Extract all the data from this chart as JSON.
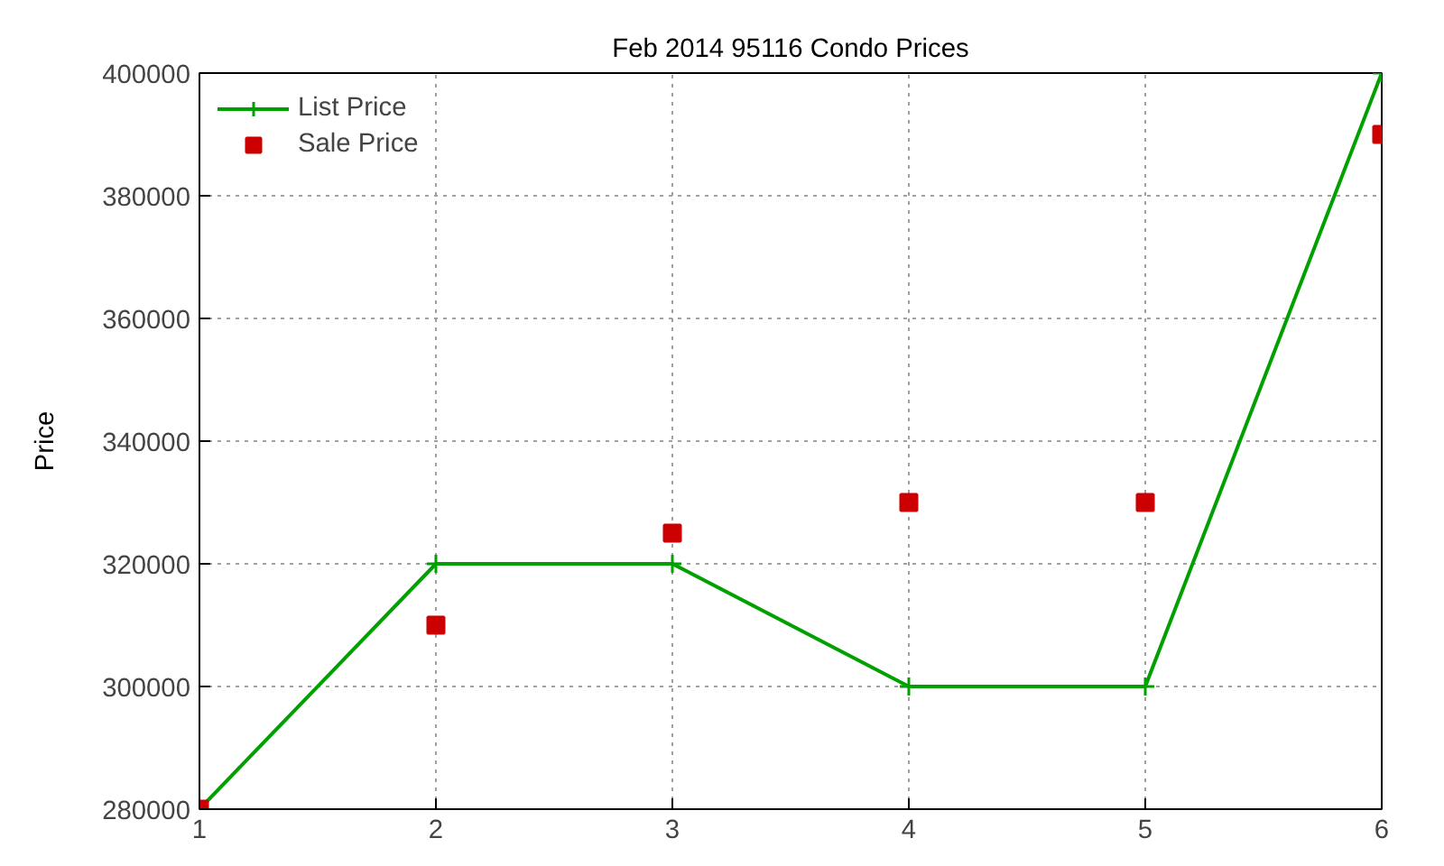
{
  "chart_data": {
    "type": "line",
    "title": "Feb 2014 95116 Condo Prices",
    "ylabel": "Price",
    "x": [
      1,
      2,
      3,
      4,
      5,
      6
    ],
    "series": [
      {
        "name": "List Price",
        "color": "#00a000",
        "marker": "cross",
        "values": [
          280000,
          320000,
          320000,
          300000,
          300000,
          400000
        ]
      },
      {
        "name": "Sale Price",
        "type": "scatter",
        "color": "#cc0000",
        "marker": "square",
        "values": [
          280000,
          310000,
          325000,
          330000,
          330000,
          390000
        ]
      }
    ],
    "xlim": [
      1,
      6
    ],
    "xticks": [
      1,
      2,
      3,
      4,
      5,
      6
    ],
    "ylim": [
      280000,
      400000
    ],
    "yticks": [
      280000,
      300000,
      320000,
      340000,
      360000,
      380000,
      400000
    ],
    "grid": true,
    "legend": "top left"
  }
}
